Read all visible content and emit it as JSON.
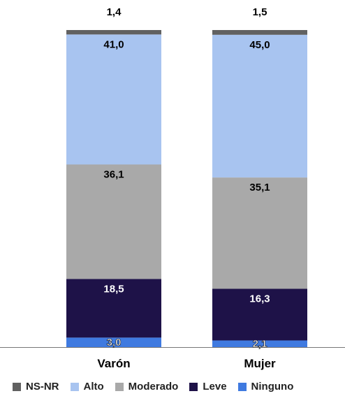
{
  "chart_data": {
    "type": "bar",
    "stacked": true,
    "categories": [
      "Varón",
      "Mujer"
    ],
    "series": [
      {
        "name": "Ninguno",
        "values": [
          3.0,
          2.1
        ],
        "labels": [
          "3,0",
          "2,1"
        ],
        "color": "#3f7ae0"
      },
      {
        "name": "Leve",
        "values": [
          18.5,
          16.3
        ],
        "labels": [
          "18,5",
          "16,3"
        ],
        "color": "#1e1248"
      },
      {
        "name": "Moderado",
        "values": [
          36.1,
          35.1
        ],
        "labels": [
          "36,1",
          "35,1"
        ],
        "color": "#a9a9a9"
      },
      {
        "name": "Alto",
        "values": [
          41.0,
          45.0
        ],
        "labels": [
          "41,0",
          "45,0"
        ],
        "color": "#a8c4f0"
      },
      {
        "name": "NS-NR",
        "values": [
          1.4,
          1.5
        ],
        "labels": [
          "1,4",
          "1,5"
        ],
        "color": "#616161"
      }
    ],
    "ylim": [
      0,
      100
    ],
    "legend_position": "bottom",
    "legend_order": [
      "NS-NR",
      "Alto",
      "Moderado",
      "Leve",
      "Ninguno"
    ],
    "grid": false
  }
}
